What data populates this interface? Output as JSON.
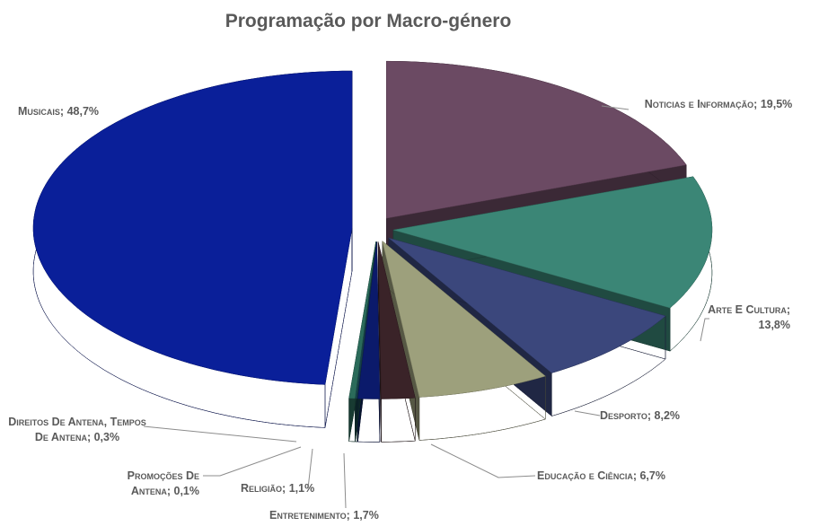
{
  "chart_data": {
    "type": "pie",
    "title": "Programação por Macro-género",
    "categories": [
      "Noticias e Informação;",
      "Arte E Cultura;",
      "Desporto;",
      "Educação e Ciência;",
      "Entretenimento;",
      "Religião;",
      "Promoções De Antena;",
      "Direitos De Antena, Tempos De Antena;",
      "Musicais;"
    ],
    "values": [
      19.5,
      13.8,
      8.2,
      6.7,
      1.7,
      1.1,
      0.1,
      0.3,
      48.7
    ],
    "value_labels": [
      "19,5%",
      "13,8%",
      "8,2%",
      "6,7%",
      "1,7%",
      "1,1%",
      "0,1%",
      "0,3%",
      "48,7%"
    ],
    "colors": [
      "#6b4a63",
      "#3b8676",
      "#3b477c",
      "#9da07c",
      "#3a2328",
      "#0b1a6b",
      "#15404a",
      "#2b6b5a",
      "#0a1f99"
    ]
  }
}
